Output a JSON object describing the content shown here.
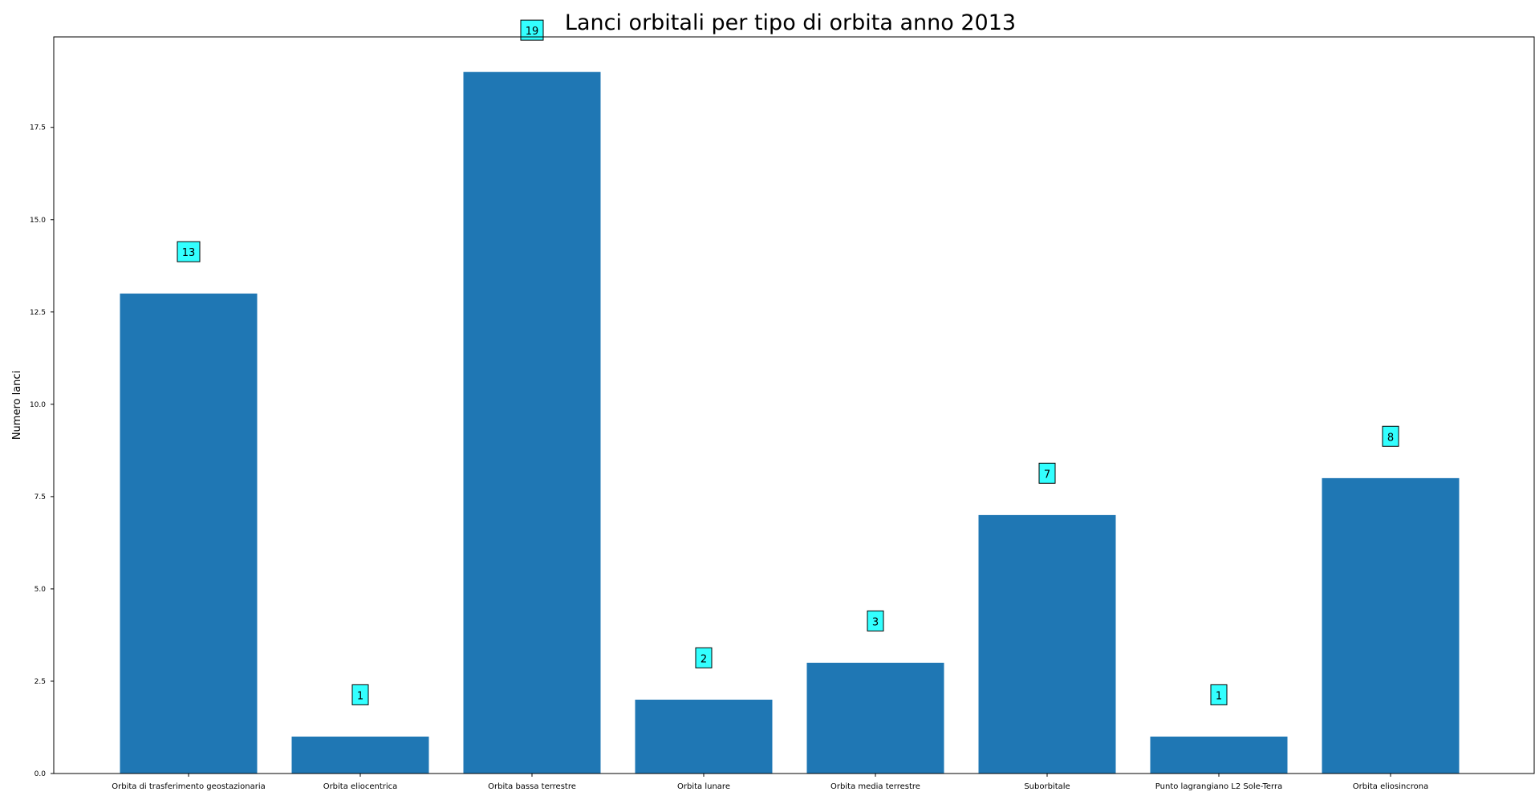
{
  "chart_data": {
    "type": "bar",
    "title": "Lanci orbitali per tipo di orbita anno 2013",
    "xlabel": "",
    "ylabel": "Numero lanci",
    "categories": [
      "Orbita di trasferimento geostazionaria",
      "Orbita eliocentrica",
      "Orbita bassa terrestre",
      "Orbita lunare",
      "Orbita media terrestre",
      "Suborbitale",
      "Punto lagrangiano L2 Sole-Terra",
      "Orbita eliosincrona"
    ],
    "values": [
      13,
      1,
      19,
      2,
      3,
      7,
      1,
      8
    ],
    "data_labels": [
      "13",
      "1",
      "19",
      "2",
      "3",
      "7",
      "1",
      "8"
    ],
    "ylim": [
      0,
      19.95
    ],
    "yticks": [
      0,
      2.5,
      5,
      7.5,
      10,
      12.5,
      15,
      17.5
    ],
    "ytick_labels": [
      "0.0",
      "2.5",
      "5.0",
      "7.5",
      "10.0",
      "12.5",
      "15.0",
      "17.5"
    ],
    "grid": false,
    "legend": "none",
    "colors": {
      "bar": "#1f77b4",
      "label_box": "#33ffff",
      "axis": "#000000"
    }
  }
}
